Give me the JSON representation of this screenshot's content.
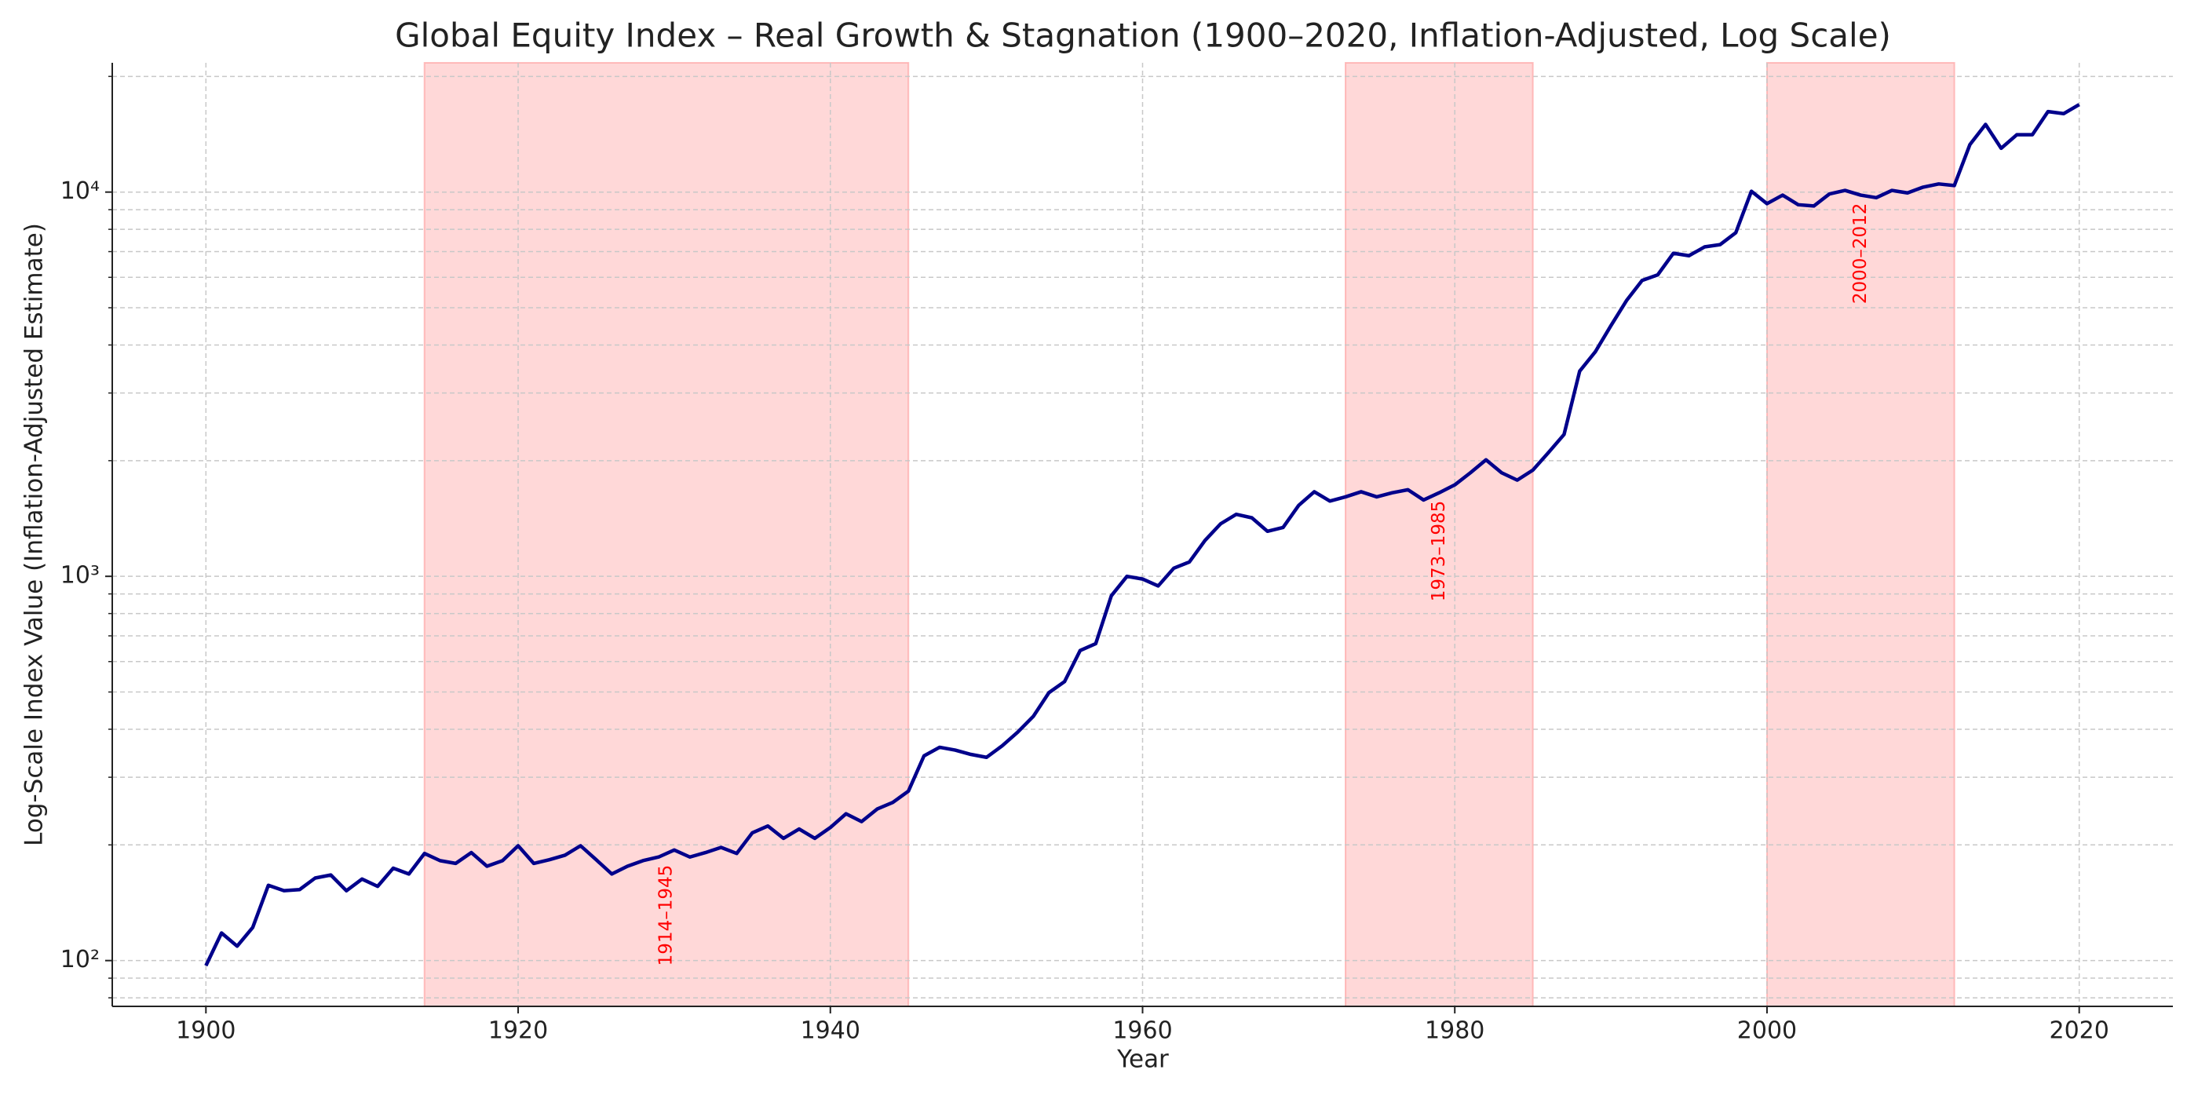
{
  "chart_data": {
    "type": "line",
    "title": "Global Equity Index – Real Growth & Stagnation (1900–2020, Inflation-Adjusted, Log Scale)",
    "x_label": "Year",
    "y_label": "Log-Scale Index Value (Inflation-Adjusted Estimate)",
    "x": [
      1900,
      1901,
      1902,
      1903,
      1904,
      1905,
      1906,
      1907,
      1908,
      1909,
      1910,
      1911,
      1912,
      1913,
      1914,
      1915,
      1916,
      1917,
      1918,
      1919,
      1920,
      1921,
      1922,
      1923,
      1924,
      1925,
      1926,
      1927,
      1928,
      1929,
      1930,
      1931,
      1932,
      1933,
      1934,
      1935,
      1936,
      1937,
      1938,
      1939,
      1940,
      1941,
      1942,
      1943,
      1944,
      1945,
      1946,
      1947,
      1948,
      1949,
      1950,
      1951,
      1952,
      1953,
      1954,
      1955,
      1956,
      1957,
      1958,
      1959,
      1960,
      1961,
      1962,
      1963,
      1964,
      1965,
      1966,
      1967,
      1968,
      1969,
      1970,
      1971,
      1972,
      1973,
      1974,
      1975,
      1976,
      1977,
      1978,
      1979,
      1980,
      1981,
      1982,
      1983,
      1984,
      1985,
      1986,
      1987,
      1988,
      1989,
      1990,
      1991,
      1992,
      1993,
      1994,
      1995,
      1996,
      1997,
      1998,
      1999,
      2000,
      2001,
      2002,
      2003,
      2004,
      2005,
      2006,
      2007,
      2008,
      2009,
      2010,
      2011,
      2012,
      2013,
      2014,
      2015,
      2016,
      2017,
      2018,
      2019,
      2020
    ],
    "values": [
      97,
      118,
      109,
      122,
      157,
      152,
      153,
      164,
      167,
      152,
      163,
      156,
      174,
      168,
      190,
      182,
      179,
      191,
      176,
      182,
      199,
      179,
      183,
      188,
      199,
      183,
      168,
      176,
      182,
      186,
      194,
      186,
      191,
      197,
      190,
      215,
      224,
      208,
      220,
      208,
      222,
      241,
      230,
      248,
      258,
      276,
      341,
      359,
      353,
      344,
      338,
      362,
      393,
      432,
      498,
      532,
      641,
      668,
      890,
      1000,
      984,
      944,
      1050,
      1090,
      1240,
      1370,
      1450,
      1420,
      1310,
      1340,
      1530,
      1660,
      1570,
      1610,
      1660,
      1610,
      1650,
      1680,
      1580,
      1650,
      1730,
      1860,
      2010,
      1860,
      1780,
      1890,
      2100,
      2340,
      3420,
      3840,
      4490,
      5220,
      5890,
      6090,
      6930,
      6830,
      7200,
      7300,
      7840,
      10050,
      9330,
      9820,
      9270,
      9200,
      9890,
      10100,
      9820,
      9670,
      10100,
      9950,
      10300,
      10500,
      10400,
      13300,
      15000,
      13000,
      14100,
      14100,
      16200,
      16000,
      16900
    ],
    "color": "#00008b",
    "shaded_regions": [
      {
        "start": 1914,
        "end": 1945,
        "label": "1914–1945"
      },
      {
        "start": 1973,
        "end": 1985,
        "label": "1973–1985"
      },
      {
        "start": 2000,
        "end": 2012,
        "label": "2000–2012"
      }
    ],
    "shade_color": "#ff9999",
    "annotation_color": "#ff0000",
    "xlim": [
      1894,
      2026
    ],
    "ylim": [
      76,
      21700
    ],
    "xticks": [
      1900,
      1920,
      1940,
      1960,
      1980,
      2000,
      2020
    ],
    "yticks": [
      {
        "value": 100,
        "label": "10²"
      },
      {
        "value": 1000,
        "label": "10³"
      },
      {
        "value": 10000,
        "label": "10⁴"
      }
    ],
    "log_y": true,
    "grid": true
  }
}
